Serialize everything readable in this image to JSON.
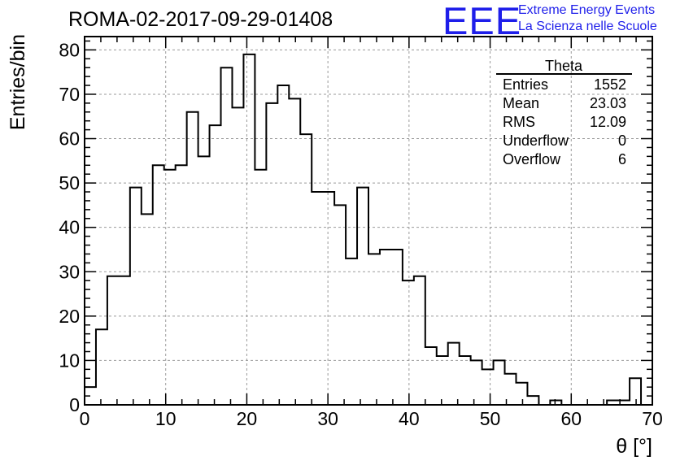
{
  "header": {
    "title": "ROMA-02-2017-09-29-01408",
    "logo_letters": "EEE",
    "logo_line1": "Extreme Energy Events",
    "logo_line2": "La Scienza nelle Scuole",
    "logo_color": "#1e1eea"
  },
  "stats_box": {
    "name": "Theta",
    "rows": [
      {
        "label": "Entries",
        "value": "1552"
      },
      {
        "label": "Mean",
        "value": "23.03"
      },
      {
        "label": "RMS",
        "value": "12.09"
      },
      {
        "label": "Underflow",
        "value": "0"
      },
      {
        "label": "Overflow",
        "value": "6"
      }
    ]
  },
  "chart_data": {
    "type": "bar",
    "histogram": true,
    "xlabel": "θ [°]",
    "ylabel": "Entries/bin",
    "xlim": [
      0,
      70
    ],
    "ylim": [
      0,
      83
    ],
    "bin_width": 1.4,
    "xticks": [
      0,
      10,
      20,
      30,
      40,
      50,
      60,
      70
    ],
    "yticks": [
      0,
      10,
      20,
      30,
      40,
      50,
      60,
      70,
      80
    ],
    "grid": true,
    "values": [
      4,
      17,
      29,
      29,
      49,
      43,
      54,
      53,
      54,
      66,
      56,
      63,
      76,
      67,
      79,
      53,
      68,
      72,
      69,
      61,
      48,
      48,
      45,
      33,
      49,
      34,
      35,
      35,
      28,
      29,
      13,
      11,
      14,
      11,
      10,
      8,
      10,
      7,
      5,
      2,
      0,
      1,
      0,
      0,
      0,
      0,
      1,
      1,
      6,
      0
    ]
  }
}
